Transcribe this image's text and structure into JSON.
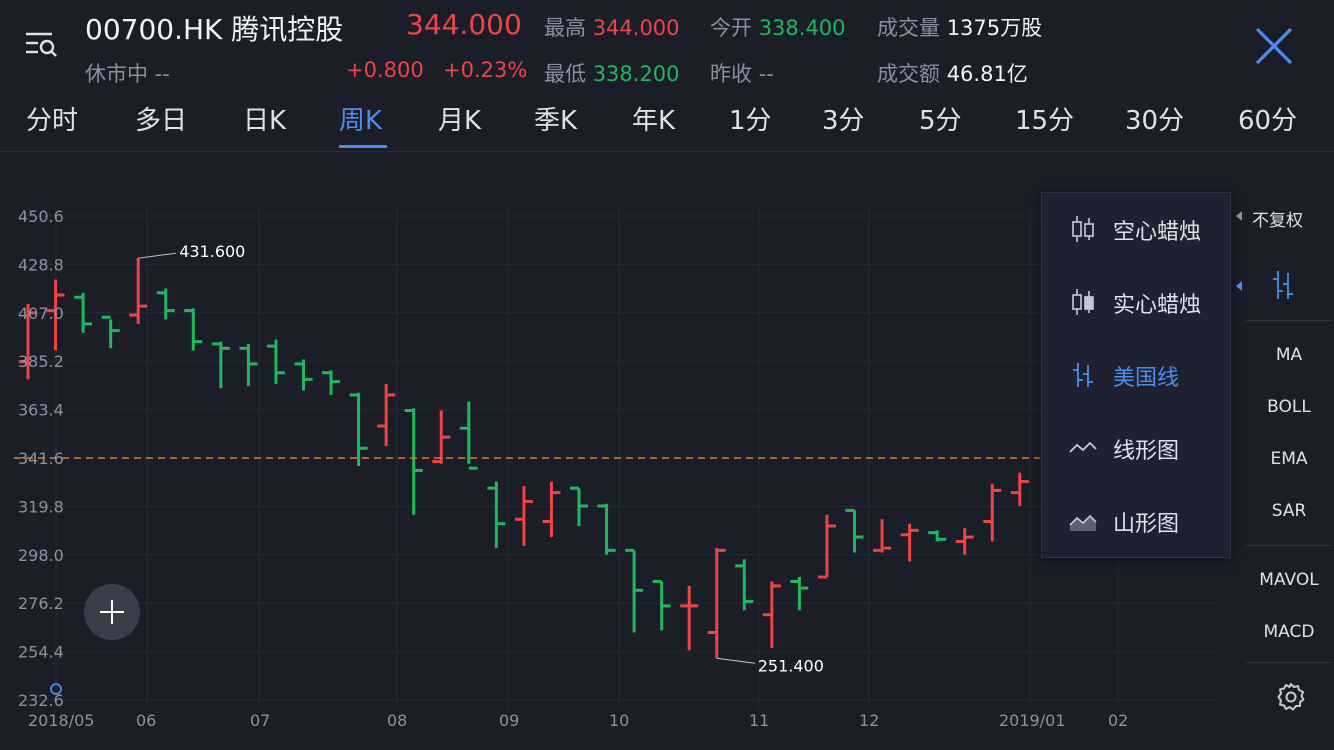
{
  "header": {
    "stock_code": "00700.HK 腾讯控股",
    "price": "344.000",
    "status": "休市中  --",
    "change": "+0.800",
    "change_pct": "+0.23%",
    "high_label": "最高",
    "high_value": "344.000",
    "open_label": "今开",
    "open_value": "338.400",
    "volume_label": "成交量",
    "volume_value": "1375万股",
    "low_label": "最低",
    "low_value": "338.200",
    "prev_close_label": "昨收",
    "prev_close_value": "--",
    "turnover_label": "成交额",
    "turnover_value": "46.81亿"
  },
  "tabs": [
    "分时",
    "多日",
    "日K",
    "周K",
    "月K",
    "季K",
    "年K",
    "1分",
    "3分",
    "5分",
    "15分",
    "30分",
    "60分"
  ],
  "active_tab": "周K",
  "chart_type_menu": {
    "items": [
      "空心蜡烛",
      "实心蜡烛",
      "美国线",
      "线形图",
      "山形图"
    ],
    "selected": "美国线"
  },
  "right_panel": {
    "adjust_label": "不复权",
    "indicators_main": [
      "MA",
      "BOLL",
      "EMA",
      "SAR"
    ],
    "indicators_sub": [
      "MAVOL",
      "MACD"
    ]
  },
  "colors": {
    "up": "#ee4444",
    "down": "#1fb85c",
    "accent": "#4a8ff0",
    "background": "#1b1e29"
  },
  "chart_data": {
    "type": "ohlc",
    "y_ticks": [
      "450.6",
      "428.8",
      "407.0",
      "385.2",
      "363.4",
      "341.6",
      "319.8",
      "298.0",
      "276.2",
      "254.4",
      "232.6"
    ],
    "ylim": [
      232.6,
      450.6
    ],
    "x_ticks": [
      "2018/05",
      "06",
      "07",
      "08",
      "09",
      "10",
      "11",
      "12",
      "2019/01",
      "02"
    ],
    "reference_line": 341.6,
    "max_annotation": "431.600",
    "min_annotation": "251.400",
    "bars": [
      {
        "o": 385.0,
        "h": 411.0,
        "l": 377.0,
        "c": 407.0
      },
      {
        "o": 408.0,
        "h": 422.0,
        "l": 390.0,
        "c": 415.0
      },
      {
        "o": 414.0,
        "h": 416.0,
        "l": 398.0,
        "c": 402.0
      },
      {
        "o": 405.0,
        "h": 404.0,
        "l": 391.0,
        "c": 399.0
      },
      {
        "o": 406.0,
        "h": 431.6,
        "l": 402.0,
        "c": 410.0
      },
      {
        "o": 416.0,
        "h": 418.0,
        "l": 404.0,
        "c": 408.0
      },
      {
        "o": 408.0,
        "h": 409.0,
        "l": 390.0,
        "c": 394.0
      },
      {
        "o": 393.0,
        "h": 394.0,
        "l": 373.0,
        "c": 391.0
      },
      {
        "o": 391.0,
        "h": 393.0,
        "l": 374.0,
        "c": 384.0
      },
      {
        "o": 392.0,
        "h": 395.0,
        "l": 375.0,
        "c": 380.0
      },
      {
        "o": 384.0,
        "h": 386.0,
        "l": 372.0,
        "c": 377.0
      },
      {
        "o": 380.0,
        "h": 381.0,
        "l": 370.0,
        "c": 376.0
      },
      {
        "o": 370.0,
        "h": 371.0,
        "l": 338.0,
        "c": 346.0
      },
      {
        "o": 356.0,
        "h": 375.0,
        "l": 347.0,
        "c": 370.0
      },
      {
        "o": 363.0,
        "h": 364.0,
        "l": 316.0,
        "c": 336.0
      },
      {
        "o": 340.0,
        "h": 363.0,
        "l": 339.0,
        "c": 351.0
      },
      {
        "o": 355.0,
        "h": 367.0,
        "l": 339.0,
        "c": 337.0
      },
      {
        "o": 328.0,
        "h": 331.0,
        "l": 301.0,
        "c": 312.0
      },
      {
        "o": 314.0,
        "h": 329.0,
        "l": 302.0,
        "c": 322.0
      },
      {
        "o": 313.0,
        "h": 331.0,
        "l": 306.0,
        "c": 326.0
      },
      {
        "o": 328.0,
        "h": 328.0,
        "l": 311.0,
        "c": 320.0
      },
      {
        "o": 320.0,
        "h": 321.0,
        "l": 298.0,
        "c": 300.0
      },
      {
        "o": 300.0,
        "h": 300.0,
        "l": 263.0,
        "c": 282.0
      },
      {
        "o": 286.0,
        "h": 286.0,
        "l": 264.0,
        "c": 275.0
      },
      {
        "o": 275.0,
        "h": 284.0,
        "l": 255.0,
        "c": 275.0
      },
      {
        "o": 263.0,
        "h": 301.0,
        "l": 251.4,
        "c": 300.0
      },
      {
        "o": 293.0,
        "h": 296.0,
        "l": 273.0,
        "c": 277.0
      },
      {
        "o": 271.0,
        "h": 286.0,
        "l": 256.0,
        "c": 284.0
      },
      {
        "o": 286.0,
        "h": 288.0,
        "l": 273.0,
        "c": 283.0
      },
      {
        "o": 288.0,
        "h": 316.0,
        "l": 288.0,
        "c": 311.0
      },
      {
        "o": 318.0,
        "h": 318.0,
        "l": 299.0,
        "c": 306.0
      },
      {
        "o": 300.0,
        "h": 314.0,
        "l": 299.0,
        "c": 301.0
      },
      {
        "o": 307.0,
        "h": 312.0,
        "l": 295.0,
        "c": 309.0
      },
      {
        "o": 308.0,
        "h": 309.0,
        "l": 304.0,
        "c": 305.0
      },
      {
        "o": 304.0,
        "h": 310.0,
        "l": 298.0,
        "c": 306.0
      },
      {
        "o": 313.0,
        "h": 330.0,
        "l": 304.0,
        "c": 327.0
      },
      {
        "o": 326.0,
        "h": 335.0,
        "l": 320.0,
        "c": 331.0
      }
    ]
  }
}
